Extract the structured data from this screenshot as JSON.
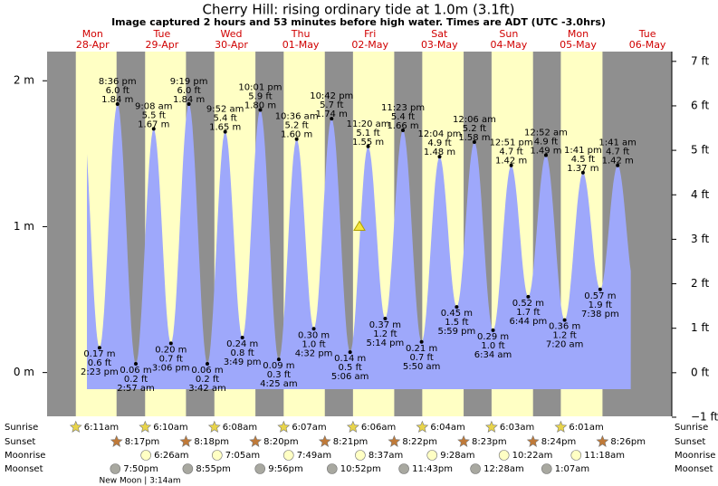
{
  "chart_data": {
    "type": "tide",
    "title": "Cherry Hill: rising  ordinary tide at 1.0m (3.1ft)",
    "subtitle": "Image captured 2 hours and 53 minutes before high water. Times are ADT (UTC -3.0hrs)",
    "current_height": 1.0,
    "ylim": [
      -0.3,
      2.2
    ],
    "yticks": [
      {
        "value": 0,
        "label": "0 m"
      },
      {
        "value": 1,
        "label": "1 m"
      },
      {
        "value": 2,
        "label": "2 m"
      }
    ],
    "y2lim": [
      -0.98,
      7.22
    ],
    "y2ticks": [
      {
        "value": -1,
        "label": "−1 ft"
      },
      {
        "value": 0,
        "label": "0 ft"
      },
      {
        "value": 1,
        "label": "1 ft"
      },
      {
        "value": 2,
        "label": "2 ft"
      },
      {
        "value": 3,
        "label": "3 ft"
      },
      {
        "value": 4,
        "label": "4 ft"
      },
      {
        "value": 5,
        "label": "5 ft"
      },
      {
        "value": 6,
        "label": "6 ft"
      },
      {
        "value": 7,
        "label": "7 ft"
      }
    ],
    "row_labels": {
      "sunrise": "Sunrise",
      "sunset": "Sunset",
      "moonrise": "Moonrise",
      "moonset": "Moonset"
    },
    "colors": {
      "night": "#8f8f8f",
      "day": "#ffffc4",
      "water": "#9ea8fb",
      "day_label": "#d00000"
    },
    "days": [
      {
        "weekday": "Mon",
        "date": "28-Apr",
        "sunrise": "6:11am",
        "sunset": "8:17pm",
        "moonset": "7:50pm",
        "tides": [
          {
            "time": "2:23 pm",
            "height": 0.17,
            "height_label": "0.17 m",
            "feet_label": "0.6 ft"
          },
          {
            "time": "8:36 pm",
            "height": 1.84,
            "height_label": "1.84 m",
            "feet_label": "6.0 ft"
          }
        ]
      },
      {
        "weekday": "Tue",
        "date": "29-Apr",
        "sunrise": "6:10am",
        "sunset": "8:18pm",
        "moonrise": "6:26am",
        "moonset": "8:55pm",
        "moon_phase": "New Moon | 3:14am",
        "tides": [
          {
            "time": "2:57 am",
            "height": 0.06,
            "height_label": "0.06 m",
            "feet_label": "0.2 ft"
          },
          {
            "time": "9:08 am",
            "height": 1.67,
            "height_label": "1.67 m",
            "feet_label": "5.5 ft"
          },
          {
            "time": "3:06 pm",
            "height": 0.2,
            "height_label": "0.20 m",
            "feet_label": "0.7 ft"
          },
          {
            "time": "9:19 pm",
            "height": 1.84,
            "height_label": "1.84 m",
            "feet_label": "6.0 ft"
          }
        ]
      },
      {
        "weekday": "Wed",
        "date": "30-Apr",
        "sunrise": "6:08am",
        "sunset": "8:20pm",
        "moonrise": "7:05am",
        "moonset": "9:56pm",
        "tides": [
          {
            "time": "3:42 am",
            "height": 0.06,
            "height_label": "0.06 m",
            "feet_label": "0.2 ft"
          },
          {
            "time": "9:52 am",
            "height": 1.65,
            "height_label": "1.65 m",
            "feet_label": "5.4 ft"
          },
          {
            "time": "3:49 pm",
            "height": 0.24,
            "height_label": "0.24 m",
            "feet_label": "0.8 ft"
          },
          {
            "time": "10:01 pm",
            "height": 1.8,
            "height_label": "1.80 m",
            "feet_label": "5.9 ft"
          }
        ]
      },
      {
        "weekday": "Thu",
        "date": "01-May",
        "sunrise": "6:07am",
        "sunset": "8:21pm",
        "moonrise": "7:49am",
        "moonset": "10:52pm",
        "tides": [
          {
            "time": "4:25 am",
            "height": 0.09,
            "height_label": "0.09 m",
            "feet_label": "0.3 ft"
          },
          {
            "time": "10:36 am",
            "height": 1.6,
            "height_label": "1.60 m",
            "feet_label": "5.2 ft"
          },
          {
            "time": "4:32 pm",
            "height": 0.3,
            "height_label": "0.30 m",
            "feet_label": "1.0 ft"
          },
          {
            "time": "10:42 pm",
            "height": 1.74,
            "height_label": "1.74 m",
            "feet_label": "5.7 ft"
          }
        ]
      },
      {
        "weekday": "Fri",
        "date": "02-May",
        "sunrise": "6:06am",
        "sunset": "8:22pm",
        "moonrise": "8:37am",
        "moonset": "11:43pm",
        "tides": [
          {
            "time": "5:06 am",
            "height": 0.14,
            "height_label": "0.14 m",
            "feet_label": "0.5 ft"
          },
          {
            "time": "11:20 am",
            "height": 1.55,
            "height_label": "1.55 m",
            "feet_label": "5.1 ft"
          },
          {
            "time": "5:14 pm",
            "height": 0.37,
            "height_label": "0.37 m",
            "feet_label": "1.2 ft"
          },
          {
            "time": "11:23 pm",
            "height": 1.66,
            "height_label": "1.66 m",
            "feet_label": "5.4 ft"
          }
        ]
      },
      {
        "weekday": "Sat",
        "date": "03-May",
        "sunrise": "6:04am",
        "sunset": "8:23pm",
        "moonrise": "9:28am",
        "tides": [
          {
            "time": "5:50 am",
            "height": 0.21,
            "height_label": "0.21 m",
            "feet_label": "0.7 ft"
          },
          {
            "time": "12:04 pm",
            "height": 1.48,
            "height_label": "1.48 m",
            "feet_label": "4.9 ft"
          },
          {
            "time": "5:59 pm",
            "height": 0.45,
            "height_label": "0.45 m",
            "feet_label": "1.5 ft"
          }
        ]
      },
      {
        "weekday": "Sun",
        "date": "04-May",
        "sunrise": "6:03am",
        "sunset": "8:24pm",
        "moonrise": "10:22am",
        "moonset": "12:28am",
        "tides": [
          {
            "time": "12:06 am",
            "height": 1.58,
            "height_label": "1.58 m",
            "feet_label": "5.2 ft"
          },
          {
            "time": "6:34 am",
            "height": 0.29,
            "height_label": "0.29 m",
            "feet_label": "1.0 ft"
          },
          {
            "time": "12:51 pm",
            "height": 1.42,
            "height_label": "1.42 m",
            "feet_label": "4.7 ft"
          },
          {
            "time": "6:44 pm",
            "height": 0.52,
            "height_label": "0.52 m",
            "feet_label": "1.7 ft"
          }
        ]
      },
      {
        "weekday": "Mon",
        "date": "05-May",
        "sunrise": "6:01am",
        "sunset": "8:26pm",
        "moonrise": "11:18am",
        "moonset": "1:07am",
        "tides": [
          {
            "time": "12:52 am",
            "height": 1.49,
            "height_label": "1.49 m",
            "feet_label": "4.9 ft"
          },
          {
            "time": "7:20 am",
            "height": 0.36,
            "height_label": "0.36 m",
            "feet_label": "1.2 ft"
          },
          {
            "time": "1:41 pm",
            "height": 1.37,
            "height_label": "1.37 m",
            "feet_label": "4.5 ft"
          },
          {
            "time": "7:38 pm",
            "height": 0.57,
            "height_label": "0.57 m",
            "feet_label": "1.9 ft"
          }
        ]
      },
      {
        "weekday": "Tue",
        "date": "06-May",
        "tides": [
          {
            "time": "1:41 am",
            "height": 1.42,
            "height_label": "1.42 m",
            "feet_label": "4.7 ft"
          }
        ]
      }
    ]
  }
}
